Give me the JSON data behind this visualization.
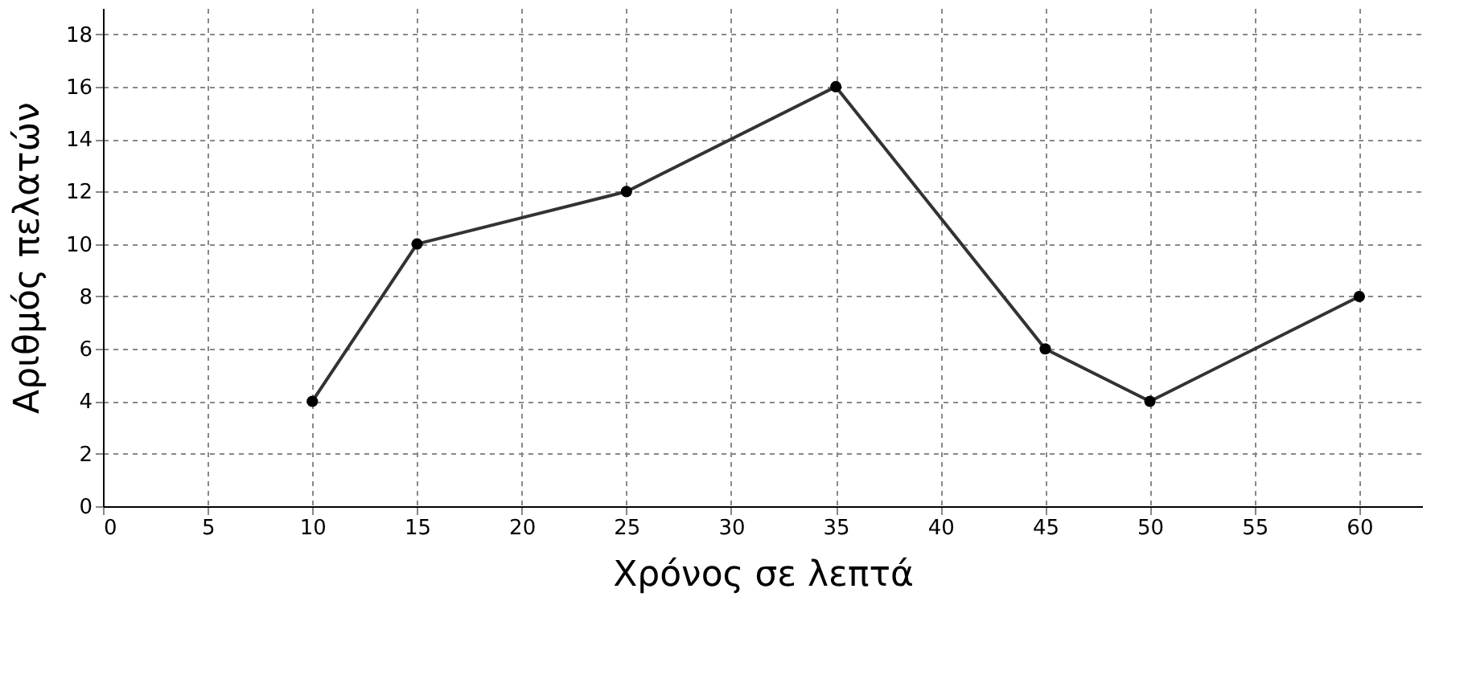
{
  "chart_data": {
    "type": "line",
    "xlabel": "Χρόνος σε λεπτά",
    "ylabel": "Αριθμός πελατών",
    "x": [
      10,
      15,
      25,
      35,
      45,
      50,
      60
    ],
    "series": [
      {
        "color": "#333333",
        "values": [
          4,
          10,
          12,
          16,
          6,
          4,
          8
        ]
      }
    ],
    "xlim": [
      0,
      63
    ],
    "xticks": [
      0,
      5,
      10,
      15,
      20,
      25,
      30,
      35,
      40,
      45,
      50,
      55,
      60
    ],
    "ylim": [
      0,
      19
    ],
    "yticks": [
      0,
      2,
      4,
      6,
      8,
      10,
      12,
      14,
      16,
      18
    ],
    "grid": true,
    "marker": "circle",
    "line_style": "solid"
  }
}
